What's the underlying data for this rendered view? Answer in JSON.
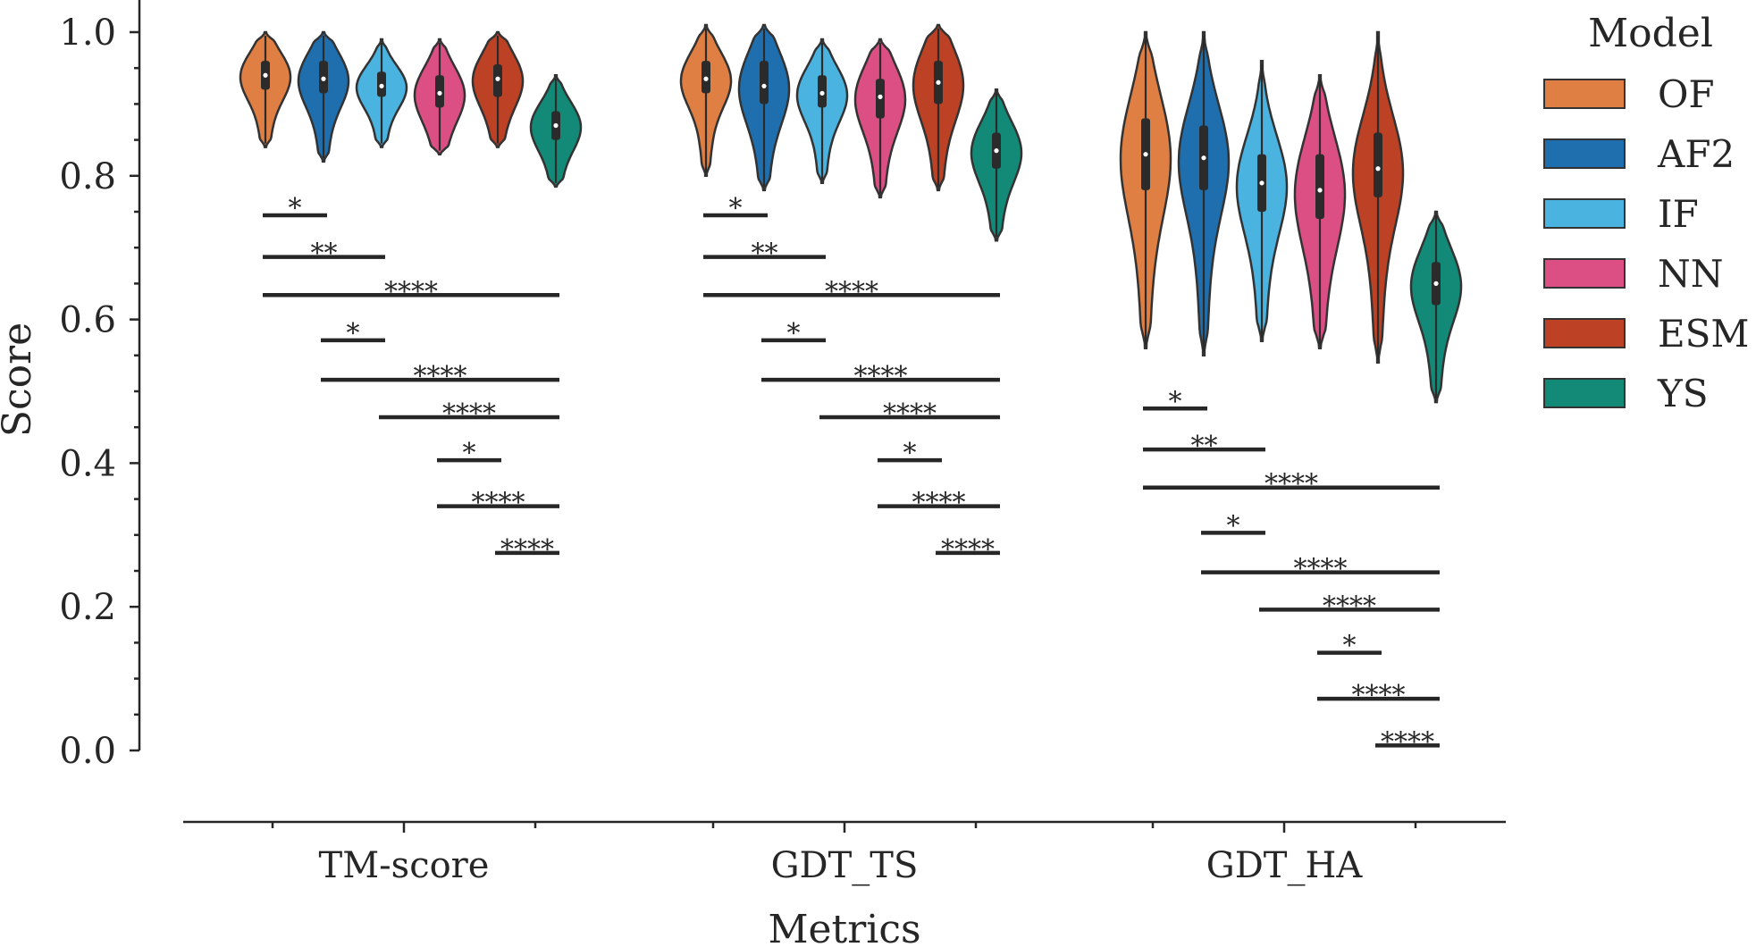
{
  "chart_data": {
    "type": "violin",
    "xlabel": "Metrics",
    "ylabel": "Score",
    "ylim": [
      0.0,
      1.0
    ],
    "yticks": [
      "0.0",
      "0.2",
      "0.4",
      "0.6",
      "0.8",
      "1.0"
    ],
    "categories": [
      "TM-score",
      "GDT_TS",
      "GDT_HA"
    ],
    "legend": {
      "title": "Model",
      "position": "right",
      "entries": [
        {
          "name": "OF",
          "color": "#e07f43"
        },
        {
          "name": "AF2",
          "color": "#1f6faf"
        },
        {
          "name": "IF",
          "color": "#4ab3e0"
        },
        {
          "name": "NN",
          "color": "#dc4f85"
        },
        {
          "name": "ESM",
          "color": "#bd4124"
        },
        {
          "name": "YS",
          "color": "#138a77"
        }
      ]
    },
    "series": [
      {
        "name": "OF",
        "medians": [
          0.94,
          0.935,
          0.83
        ],
        "q1": [
          0.92,
          0.915,
          0.78
        ],
        "q3": [
          0.96,
          0.96,
          0.88
        ],
        "min": [
          0.84,
          0.8,
          0.56
        ],
        "max": [
          1.0,
          1.01,
          1.0
        ]
      },
      {
        "name": "AF2",
        "medians": [
          0.935,
          0.925,
          0.825
        ],
        "q1": [
          0.915,
          0.9,
          0.78
        ],
        "q3": [
          0.96,
          0.96,
          0.87
        ],
        "min": [
          0.82,
          0.78,
          0.55
        ],
        "max": [
          1.0,
          1.01,
          1.0
        ]
      },
      {
        "name": "IF",
        "medians": [
          0.925,
          0.915,
          0.79
        ],
        "q1": [
          0.91,
          0.895,
          0.75
        ],
        "q3": [
          0.945,
          0.94,
          0.83
        ],
        "min": [
          0.84,
          0.79,
          0.57
        ],
        "max": [
          0.99,
          0.99,
          0.96
        ]
      },
      {
        "name": "NN",
        "medians": [
          0.915,
          0.91,
          0.78
        ],
        "q1": [
          0.895,
          0.88,
          0.74
        ],
        "q3": [
          0.94,
          0.935,
          0.83
        ],
        "min": [
          0.83,
          0.77,
          0.56
        ],
        "max": [
          0.99,
          0.99,
          0.94
        ]
      },
      {
        "name": "ESM",
        "medians": [
          0.935,
          0.93,
          0.81
        ],
        "q1": [
          0.91,
          0.9,
          0.77
        ],
        "q3": [
          0.955,
          0.96,
          0.86
        ],
        "min": [
          0.84,
          0.78,
          0.54
        ],
        "max": [
          1.0,
          1.01,
          1.0
        ]
      },
      {
        "name": "YS",
        "medians": [
          0.87,
          0.835,
          0.65
        ],
        "q1": [
          0.85,
          0.81,
          0.62
        ],
        "q3": [
          0.89,
          0.86,
          0.68
        ],
        "min": [
          0.785,
          0.71,
          0.485
        ],
        "max": [
          0.94,
          0.92,
          0.75
        ]
      }
    ],
    "annotations": [
      {
        "metric": "TM-score",
        "from": "OF",
        "to": "AF2",
        "y": 0.745,
        "label": "*"
      },
      {
        "metric": "TM-score",
        "from": "OF",
        "to": "IF",
        "y": 0.687,
        "label": "**"
      },
      {
        "metric": "TM-score",
        "from": "OF",
        "to": "YS",
        "y": 0.634,
        "label": "****"
      },
      {
        "metric": "TM-score",
        "from": "AF2",
        "to": "IF",
        "y": 0.571,
        "label": "*"
      },
      {
        "metric": "TM-score",
        "from": "AF2",
        "to": "YS",
        "y": 0.516,
        "label": "****"
      },
      {
        "metric": "TM-score",
        "from": "IF",
        "to": "YS",
        "y": 0.464,
        "label": "****"
      },
      {
        "metric": "TM-score",
        "from": "NN",
        "to": "ESM",
        "y": 0.404,
        "label": "*"
      },
      {
        "metric": "TM-score",
        "from": "NN",
        "to": "YS",
        "y": 0.34,
        "label": "****"
      },
      {
        "metric": "TM-score",
        "from": "ESM",
        "to": "YS",
        "y": 0.275,
        "label": "****"
      },
      {
        "metric": "GDT_TS",
        "from": "OF",
        "to": "AF2",
        "y": 0.745,
        "label": "*"
      },
      {
        "metric": "GDT_TS",
        "from": "OF",
        "to": "IF",
        "y": 0.687,
        "label": "**"
      },
      {
        "metric": "GDT_TS",
        "from": "OF",
        "to": "YS",
        "y": 0.634,
        "label": "****"
      },
      {
        "metric": "GDT_TS",
        "from": "AF2",
        "to": "IF",
        "y": 0.571,
        "label": "*"
      },
      {
        "metric": "GDT_TS",
        "from": "AF2",
        "to": "YS",
        "y": 0.516,
        "label": "****"
      },
      {
        "metric": "GDT_TS",
        "from": "IF",
        "to": "YS",
        "y": 0.464,
        "label": "****"
      },
      {
        "metric": "GDT_TS",
        "from": "NN",
        "to": "ESM",
        "y": 0.404,
        "label": "*"
      },
      {
        "metric": "GDT_TS",
        "from": "NN",
        "to": "YS",
        "y": 0.34,
        "label": "****"
      },
      {
        "metric": "GDT_TS",
        "from": "ESM",
        "to": "YS",
        "y": 0.275,
        "label": "****"
      },
      {
        "metric": "GDT_HA",
        "from": "OF",
        "to": "AF2",
        "y": 0.476,
        "label": "*"
      },
      {
        "metric": "GDT_HA",
        "from": "OF",
        "to": "IF",
        "y": 0.419,
        "label": "**"
      },
      {
        "metric": "GDT_HA",
        "from": "OF",
        "to": "YS",
        "y": 0.366,
        "label": "****"
      },
      {
        "metric": "GDT_HA",
        "from": "AF2",
        "to": "IF",
        "y": 0.303,
        "label": "*"
      },
      {
        "metric": "GDT_HA",
        "from": "AF2",
        "to": "YS",
        "y": 0.248,
        "label": "****"
      },
      {
        "metric": "GDT_HA",
        "from": "IF",
        "to": "YS",
        "y": 0.196,
        "label": "****"
      },
      {
        "metric": "GDT_HA",
        "from": "NN",
        "to": "ESM",
        "y": 0.136,
        "label": "*"
      },
      {
        "metric": "GDT_HA",
        "from": "NN",
        "to": "YS",
        "y": 0.072,
        "label": "****"
      },
      {
        "metric": "GDT_HA",
        "from": "ESM",
        "to": "YS",
        "y": 0.007,
        "label": "****"
      }
    ]
  }
}
